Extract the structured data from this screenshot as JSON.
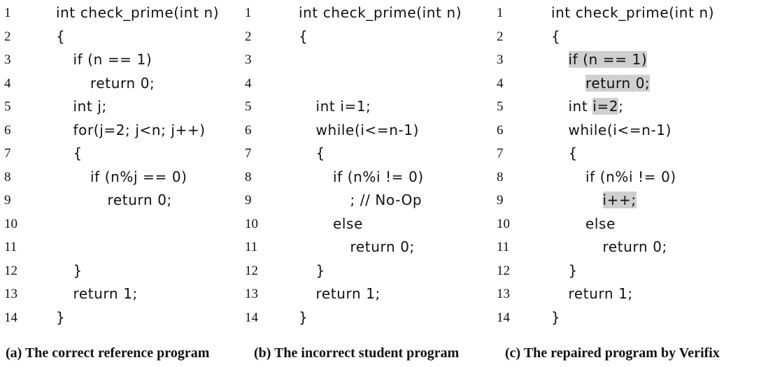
{
  "panels": [
    {
      "line_numbers": [
        "1",
        "2",
        "3",
        "4",
        "5",
        "6",
        "7",
        "8",
        "9",
        "10",
        "11",
        "12",
        "13",
        "14"
      ],
      "lines": [
        {
          "indent": 0,
          "text": "int check_prime(int n)"
        },
        {
          "indent": 0,
          "text": "{"
        },
        {
          "indent": 1,
          "text": "if (n == 1)"
        },
        {
          "indent": 2,
          "text": "return 0;"
        },
        {
          "indent": 1,
          "text": "int j;"
        },
        {
          "indent": 1,
          "text": "for(j=2; j<n; j++)"
        },
        {
          "indent": 1,
          "text": "{"
        },
        {
          "indent": 2,
          "text": "if (n%j == 0)"
        },
        {
          "indent": 3,
          "text": "return 0;"
        },
        {
          "indent": 0,
          "text": ""
        },
        {
          "indent": 0,
          "text": ""
        },
        {
          "indent": 1,
          "text": "}"
        },
        {
          "indent": 1,
          "text": "return 1;"
        },
        {
          "indent": 0,
          "text": "}"
        }
      ],
      "caption": "(a) The correct reference program"
    },
    {
      "line_numbers": [
        "1",
        "2",
        "3",
        "4",
        "5",
        "6",
        "7",
        "8",
        "9",
        "10",
        "11",
        "12",
        "13",
        "14"
      ],
      "lines": [
        {
          "indent": 0,
          "text": "int check_prime(int n)"
        },
        {
          "indent": 0,
          "text": "{"
        },
        {
          "indent": 0,
          "text": ""
        },
        {
          "indent": 0,
          "text": ""
        },
        {
          "indent": 1,
          "text": "int i=1;"
        },
        {
          "indent": 1,
          "text": "while(i<=n-1)"
        },
        {
          "indent": 1,
          "text": "{"
        },
        {
          "indent": 2,
          "text": "if (n%i != 0)"
        },
        {
          "indent": 3,
          "text": "; // No-Op"
        },
        {
          "indent": 2,
          "text": "else"
        },
        {
          "indent": 3,
          "text": "return 0;"
        },
        {
          "indent": 1,
          "text": "}"
        },
        {
          "indent": 1,
          "text": "return 1;"
        },
        {
          "indent": 0,
          "text": "}"
        }
      ],
      "caption": "(b) The incorrect student program"
    },
    {
      "line_numbers": [
        "1",
        "2",
        "3",
        "4",
        "5",
        "6",
        "7",
        "8",
        "9",
        "10",
        "11",
        "12",
        "13",
        "14"
      ],
      "lines": [
        {
          "indent": 0,
          "text": "int check_prime(int n)"
        },
        {
          "indent": 0,
          "text": "{"
        },
        {
          "indent": 1,
          "text": "if (n == 1)",
          "highlighted": true
        },
        {
          "indent": 2,
          "text": "return 0;",
          "highlighted": true
        },
        {
          "indent": 1,
          "pre": "int ",
          "text": "i=2",
          "post": ";",
          "highlighted": true
        },
        {
          "indent": 1,
          "text": "while(i<=n-1)"
        },
        {
          "indent": 1,
          "text": "{"
        },
        {
          "indent": 2,
          "text": "if (n%i != 0)"
        },
        {
          "indent": 3,
          "text": "i++;",
          "highlighted": true
        },
        {
          "indent": 2,
          "text": "else"
        },
        {
          "indent": 3,
          "text": "return 0;"
        },
        {
          "indent": 1,
          "text": "}"
        },
        {
          "indent": 1,
          "text": "return 1;"
        },
        {
          "indent": 0,
          "text": "}"
        }
      ],
      "caption": "(c) The repaired program by Verifix"
    }
  ]
}
